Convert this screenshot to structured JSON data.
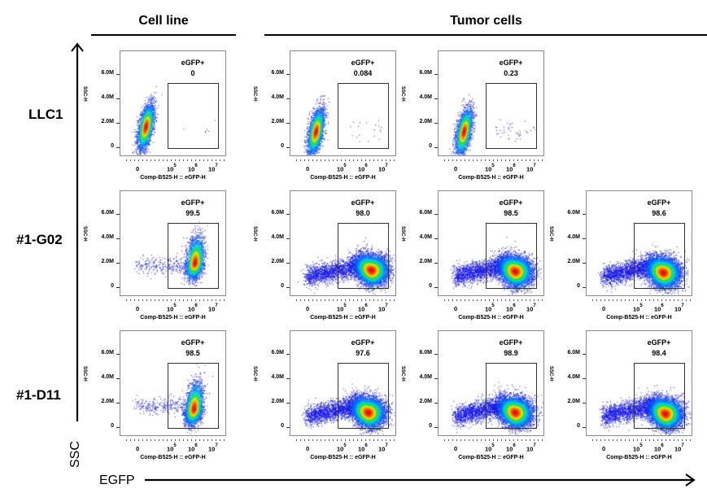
{
  "headers": {
    "cell_line": "Cell line",
    "tumor_cells": "Tumor cells"
  },
  "rows": [
    "LLC1",
    "#1-G02",
    "#1-D11"
  ],
  "axis_labels": {
    "vertical": "SSC",
    "horizontal": "EGFP"
  },
  "chart_data": {
    "type": "scatter",
    "title": "",
    "panel_axes": {
      "xlabel": "Comp-B525-H :: eGFP-H",
      "ylabel": "SSC-H",
      "xscale": "biexponential",
      "xticks": [
        "0",
        "10^5",
        "10^6",
        "10^7"
      ],
      "yticks": [
        "0",
        "2.0M",
        "4.0M",
        "6.0M"
      ],
      "ylim": [
        0,
        7600000
      ]
    },
    "gate_name": "eGFP+",
    "panels": [
      {
        "row": "LLC1",
        "group": "Cell line",
        "gate_value": "0",
        "center_logx": 4.05,
        "center_y": 1700000,
        "spread": "narrow",
        "positive": false
      },
      {
        "row": "LLC1",
        "group": "Tumor cells",
        "gate_value": "0.084",
        "center_logx": 4.05,
        "center_y": 1300000,
        "spread": "narrow",
        "positive": false
      },
      {
        "row": "LLC1",
        "group": "Tumor cells",
        "gate_value": "0.23",
        "center_logx": 4.05,
        "center_y": 1300000,
        "spread": "narrow",
        "positive": false
      },
      {
        "row": "#1-G02",
        "group": "Cell line",
        "gate_value": "99.5",
        "center_logx": 6.15,
        "center_y": 2000000,
        "spread": "narrow",
        "positive": true
      },
      {
        "row": "#1-G02",
        "group": "Tumor cells",
        "gate_value": "98.0",
        "center_logx": 6.45,
        "center_y": 1400000,
        "spread": "wide",
        "positive": true
      },
      {
        "row": "#1-G02",
        "group": "Tumor cells",
        "gate_value": "98.5",
        "center_logx": 6.25,
        "center_y": 1300000,
        "spread": "wide",
        "positive": true
      },
      {
        "row": "#1-G02",
        "group": "Tumor cells",
        "gate_value": "98.6",
        "center_logx": 6.25,
        "center_y": 1200000,
        "spread": "wide",
        "positive": true
      },
      {
        "row": "#1-D11",
        "group": "Cell line",
        "gate_value": "98.5",
        "center_logx": 6.1,
        "center_y": 1500000,
        "spread": "narrow",
        "positive": true
      },
      {
        "row": "#1-D11",
        "group": "Tumor cells",
        "gate_value": "97.6",
        "center_logx": 6.3,
        "center_y": 1200000,
        "spread": "wide",
        "positive": true
      },
      {
        "row": "#1-D11",
        "group": "Tumor cells",
        "gate_value": "98.9",
        "center_logx": 6.25,
        "center_y": 1200000,
        "spread": "wide",
        "positive": true
      },
      {
        "row": "#1-D11",
        "group": "Tumor cells",
        "gate_value": "98.4",
        "center_logx": 6.35,
        "center_y": 1100000,
        "spread": "wide",
        "positive": true
      }
    ]
  }
}
